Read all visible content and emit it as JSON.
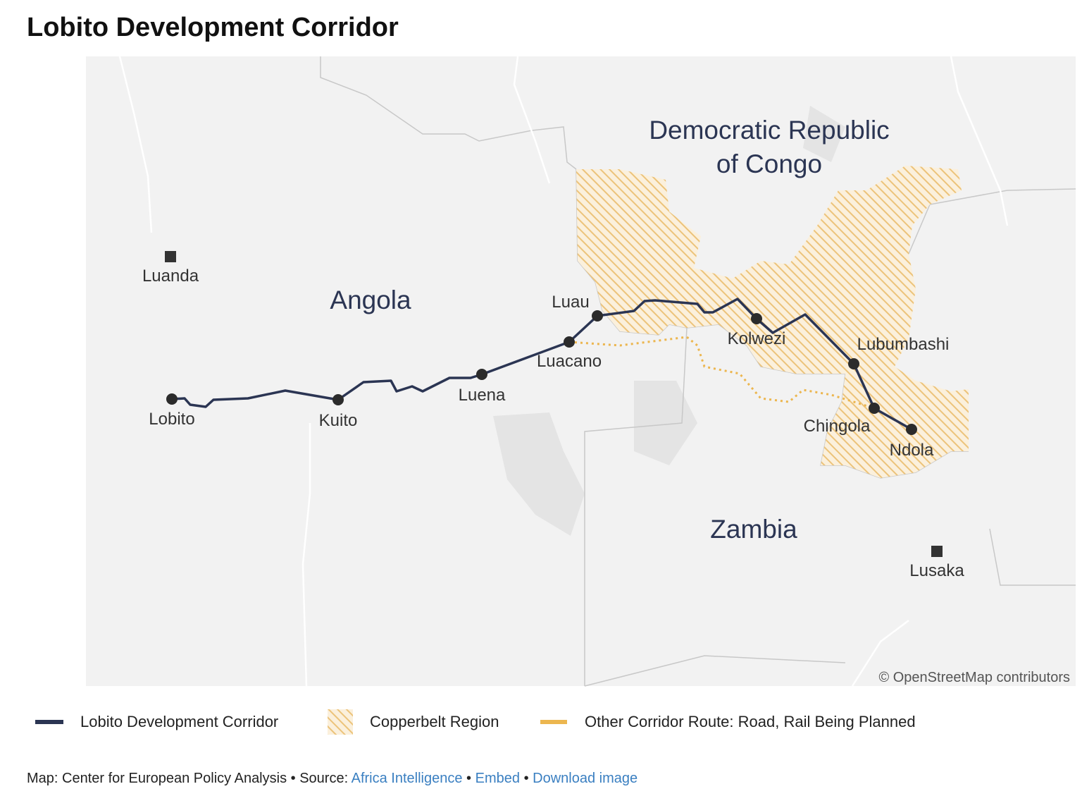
{
  "title": "Lobito Development Corridor",
  "countries": [
    {
      "label_lines": [
        "Angola"
      ]
    },
    {
      "label_lines": [
        "Democratic Republic",
        "of Congo"
      ]
    },
    {
      "label_lines": [
        "Zambia"
      ]
    }
  ],
  "capitals": [
    "Luanda",
    "Lusaka"
  ],
  "stations": [
    "Lobito",
    "Kuito",
    "Luena",
    "Luacano",
    "Luau",
    "Kolwezi",
    "Lubumbashi",
    "Chingola",
    "Ndola"
  ],
  "attribution": "© OpenStreetMap contributors",
  "legend": [
    "Lobito Development Corridor",
    "Copperbelt Region",
    "Other Corridor Route: Road, Rail Being Planned"
  ],
  "footer": {
    "credit": "Map: Center for European Policy Analysis",
    "separator": "•",
    "source_label": "Source:",
    "links": [
      "Africa Intelligence",
      "Embed",
      "Download image"
    ]
  }
}
